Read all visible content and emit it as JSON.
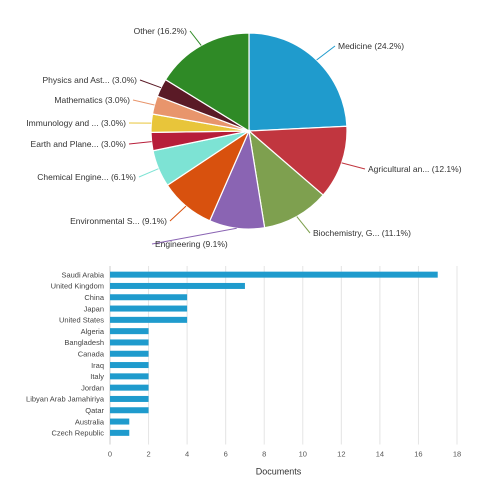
{
  "chart_data": [
    {
      "type": "pie",
      "slices": [
        {
          "label": "Medicine (24.2%)",
          "value": 24.2,
          "color": "#1f9bcd"
        },
        {
          "label": "Agricultural an... (12.1%)",
          "value": 12.1,
          "color": "#c1363f"
        },
        {
          "label": "Biochemistry, G... (11.1%)",
          "value": 11.1,
          "color": "#7ea04f"
        },
        {
          "label": "Engineering (9.1%)",
          "value": 9.1,
          "color": "#8a64b3"
        },
        {
          "label": "Environmental S... (9.1%)",
          "value": 9.1,
          "color": "#d8510e"
        },
        {
          "label": "Chemical Engine... (6.1%)",
          "value": 6.1,
          "color": "#7de3d4"
        },
        {
          "label": "Earth and Plane... (3.0%)",
          "value": 3.0,
          "color": "#b71e3a"
        },
        {
          "label": "Immunology and ... (3.0%)",
          "value": 3.0,
          "color": "#e8c53a"
        },
        {
          "label": "Mathematics (3.0%)",
          "value": 3.0,
          "color": "#e8956c"
        },
        {
          "label": "Physics and Ast... (3.0%)",
          "value": 3.0,
          "color": "#5a1a26"
        },
        {
          "label": "Other (16.2%)",
          "value": 16.2,
          "color": "#2f8a26"
        }
      ]
    },
    {
      "type": "bar",
      "orientation": "horizontal",
      "categories": [
        "Saudi Arabia",
        "United Kingdom",
        "China",
        "Japan",
        "United States",
        "Algeria",
        "Bangladesh",
        "Canada",
        "Iraq",
        "Italy",
        "Jordan",
        "Libyan Arab Jamahiriya",
        "Qatar",
        "Australia",
        "Czech Republic"
      ],
      "values": [
        17,
        7,
        4,
        4,
        4,
        2,
        2,
        2,
        2,
        2,
        2,
        2,
        2,
        1,
        1
      ],
      "xlabel": "Documents",
      "xlim": [
        0,
        18
      ],
      "xticks": [
        0,
        2,
        4,
        6,
        8,
        10,
        12,
        14,
        16,
        18
      ],
      "grid": true,
      "bar_color": "#1f9bcd"
    }
  ]
}
